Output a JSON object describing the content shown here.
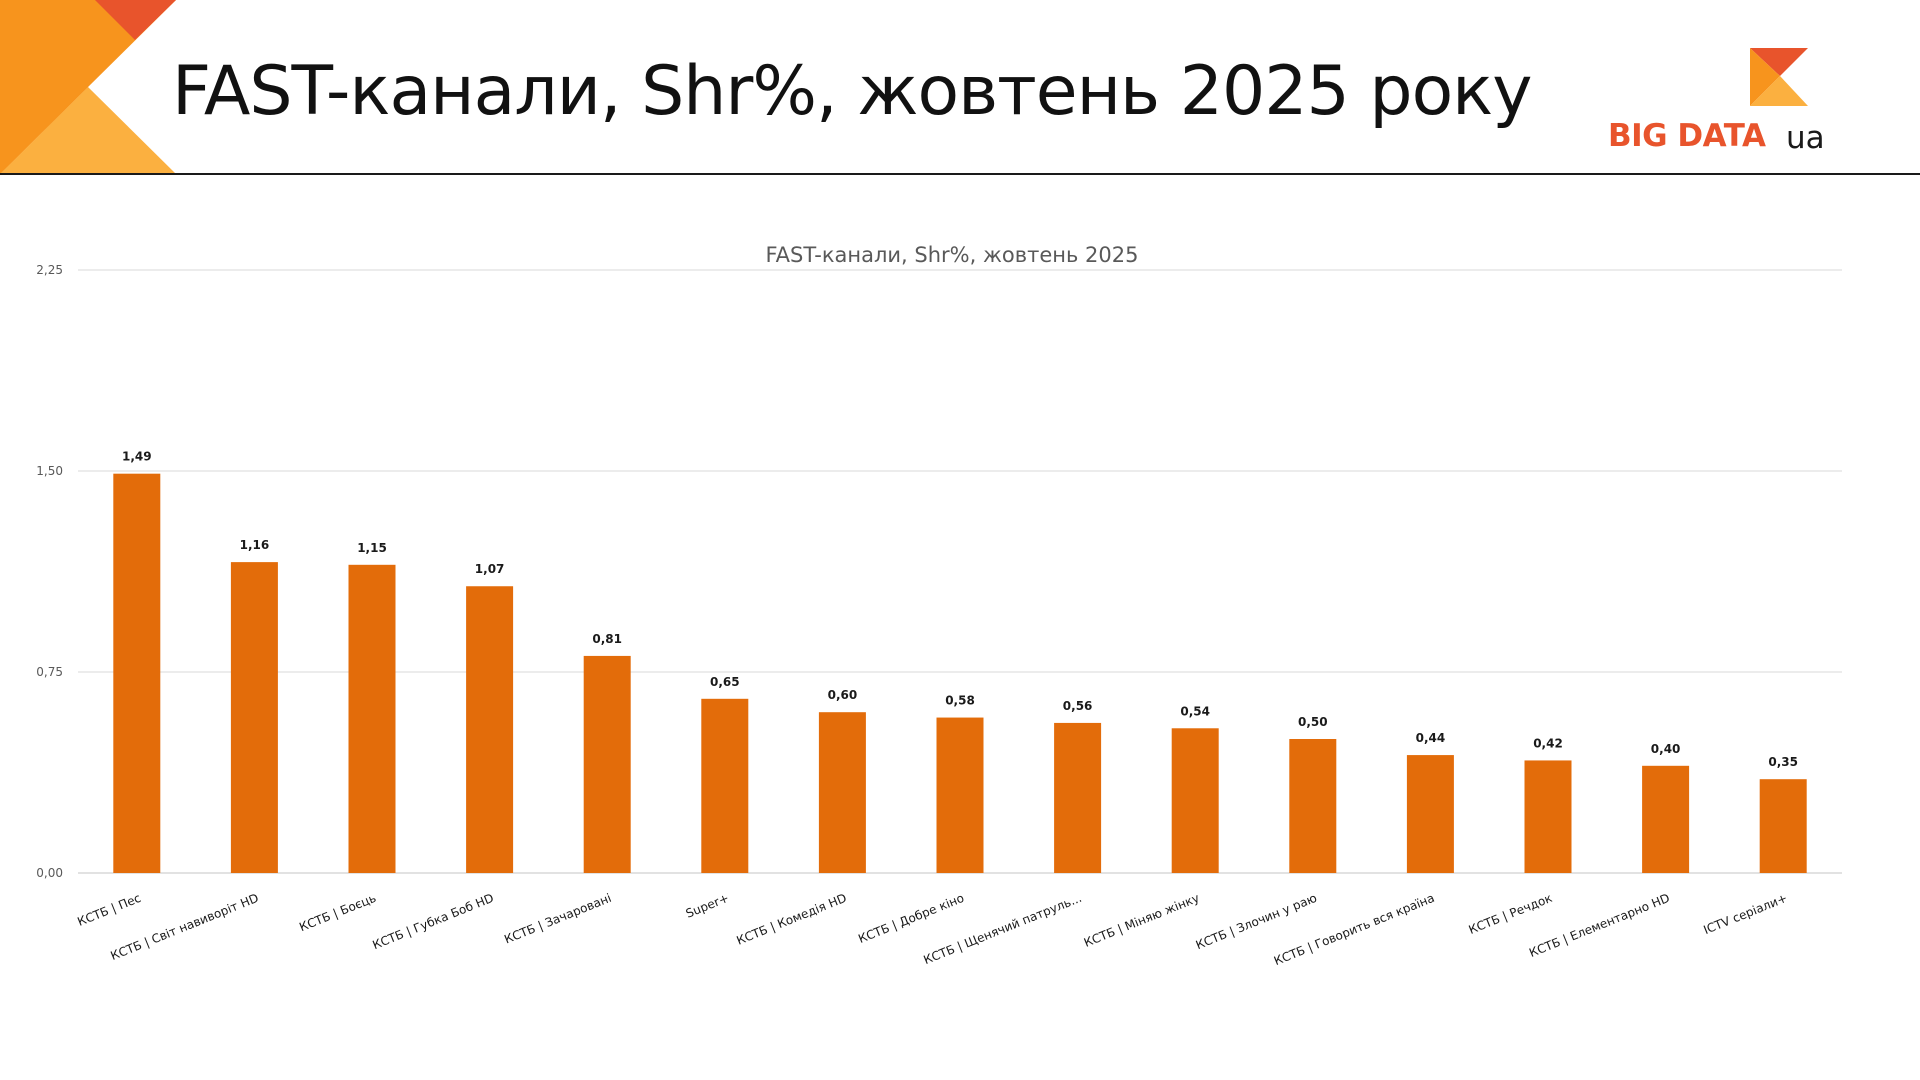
{
  "slide": {
    "title": "FAST-канали, Shr%, жовтень 2025 року"
  },
  "logo": {
    "text": "BIG DATA",
    "suffix": "ua"
  },
  "colors": {
    "bar": "#E36C0A",
    "accent_orange": "#F7941D",
    "accent_light": "#FBB040",
    "accent_red": "#E8542C",
    "grid": "#D9D9D9"
  },
  "chart_data": {
    "type": "bar",
    "title": "FAST-канали, Shr%, жовтень 2025",
    "xlabel": "",
    "ylabel": "",
    "ylim": [
      0,
      2.25
    ],
    "yticks": [
      "0,00",
      "0,75",
      "1,50",
      "2,25"
    ],
    "grid": true,
    "categories": [
      "КСТБ | Пес",
      "КСТБ | Світ навиворіт HD",
      "КСТБ | Боєць",
      "КСТБ | Губка Боб HD",
      "КСТБ | Зачаровані",
      "Super+",
      "КСТБ | Комедія HD",
      "КСТБ | Добре кіно",
      "КСТБ | Щенячий патруль...",
      "КСТБ | Міняю жінку",
      "КСТБ | Злочин у раю",
      "КСТБ | Говорить вся країна",
      "КСТБ | Речдок",
      "КСТБ | Елементарно HD",
      "ICTV серіали+"
    ],
    "values": [
      1.49,
      1.16,
      1.15,
      1.07,
      0.81,
      0.65,
      0.6,
      0.58,
      0.56,
      0.54,
      0.5,
      0.44,
      0.42,
      0.4,
      0.35
    ],
    "value_labels": [
      "1,49",
      "1,16",
      "1,15",
      "1,07",
      "0,81",
      "0,65",
      "0,60",
      "0,58",
      "0,56",
      "0,54",
      "0,50",
      "0,44",
      "0,42",
      "0,40",
      "0,35"
    ]
  }
}
